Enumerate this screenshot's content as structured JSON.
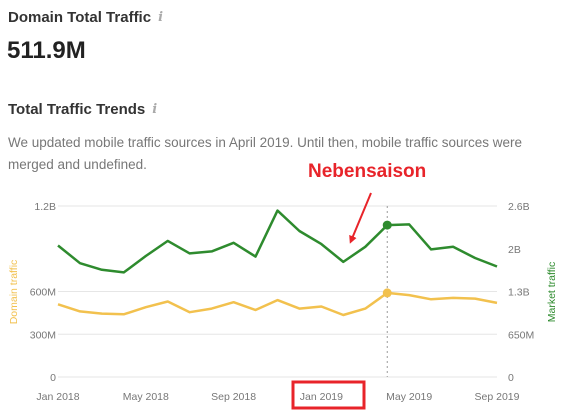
{
  "header": {
    "title": "Domain Total Traffic",
    "info_icon": "i",
    "value": "511.9M"
  },
  "trends": {
    "title": "Total Traffic Trends",
    "info_icon": "i",
    "note": "We updated mobile traffic sources in April 2019. Until then, mobile traffic sources were merged and undefined."
  },
  "annotation": {
    "text": "Nebensaison",
    "color": "#e8242a",
    "highlighted_tick": "Jan 2019"
  },
  "colors": {
    "domain": "#f2c14e",
    "market": "#2e8b2e",
    "grid": "#e6e6e6",
    "axis_text": "#777777"
  },
  "chart_data": {
    "type": "line",
    "x": [
      "2018-01",
      "2018-02",
      "2018-03",
      "2018-04",
      "2018-05",
      "2018-06",
      "2018-07",
      "2018-08",
      "2018-09",
      "2018-10",
      "2018-11",
      "2018-12",
      "2019-01",
      "2019-02",
      "2019-03",
      "2019-04",
      "2019-05",
      "2019-06",
      "2019-07",
      "2019-08",
      "2019-09"
    ],
    "x_ticks": [
      "Jan 2018",
      "May 2018",
      "Sep 2018",
      "Jan 2019",
      "May 2019",
      "Sep 2019"
    ],
    "series": [
      {
        "axis": "left",
        "color": "#f2c14e",
        "values": [
          510,
          460,
          445,
          440,
          490,
          530,
          455,
          480,
          525,
          470,
          540,
          480,
          495,
          435,
          480,
          590,
          575,
          545,
          555,
          550,
          520
        ]
      },
      {
        "axis": "right",
        "color": "#2e8b2e",
        "values": [
          2.0,
          1.73,
          1.63,
          1.59,
          1.84,
          2.07,
          1.88,
          1.91,
          2.04,
          1.83,
          2.53,
          2.22,
          2.02,
          1.75,
          1.98,
          2.31,
          2.32,
          1.94,
          1.98,
          1.81,
          1.68
        ]
      }
    ],
    "ylabel_left": "Domain traffic",
    "ylabel_right": "Market traffic",
    "y_left_ticks": [
      "0",
      "300M",
      "600M",
      "1.2B"
    ],
    "y_left_tick_values": [
      0,
      300,
      600,
      1200
    ],
    "y_right_ticks": [
      "0",
      "650M",
      "1.3B",
      "2B",
      "2.6B"
    ],
    "y_right_tick_values": [
      0,
      0.65,
      1.3,
      1.95,
      2.6
    ],
    "ylim_left": [
      0,
      1200
    ],
    "ylim_right": [
      0,
      2.6
    ],
    "highlight_x": "2019-04",
    "grid": true
  }
}
